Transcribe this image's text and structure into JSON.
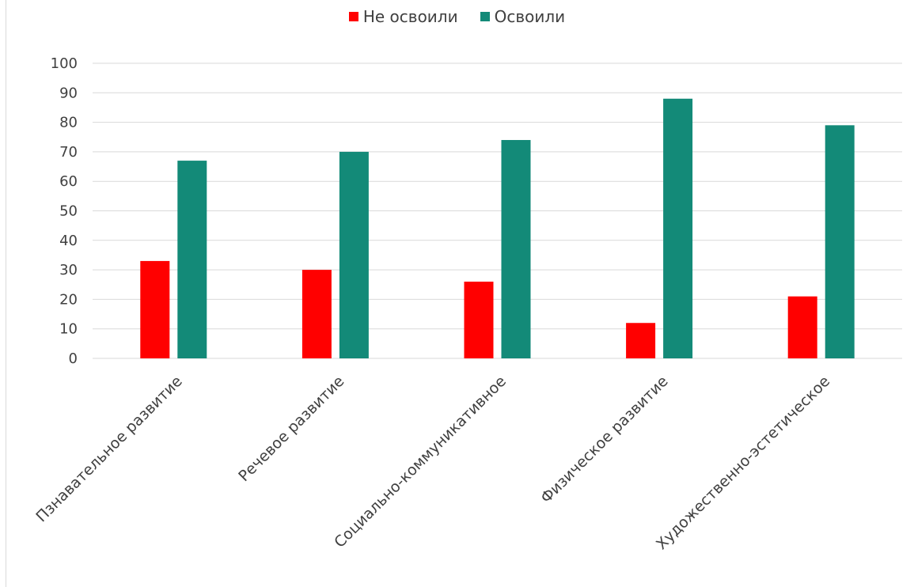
{
  "colors": {
    "not_mastered": "#ff0000",
    "mastered": "#138a78",
    "grid": "#d9d9d9",
    "text": "#404040"
  },
  "chart_data": {
    "type": "bar",
    "categories": [
      "Пзнавательное развитие",
      "Речевое развитие",
      "Социально-коммуникативное",
      "Физическое развитие",
      "Художественно-эстетическое"
    ],
    "series": [
      {
        "name": "Не освоили",
        "values": [
          33,
          30,
          26,
          12,
          21
        ],
        "color": "#ff0000"
      },
      {
        "name": "Освоили",
        "values": [
          67,
          70,
          74,
          88,
          79
        ],
        "color": "#138a78"
      }
    ],
    "ylim": [
      0,
      100
    ],
    "yticks": [
      0,
      10,
      20,
      30,
      40,
      50,
      60,
      70,
      80,
      90,
      100
    ],
    "grid": true,
    "legend_position": "top",
    "xlabel": "",
    "ylabel": "",
    "title": ""
  }
}
